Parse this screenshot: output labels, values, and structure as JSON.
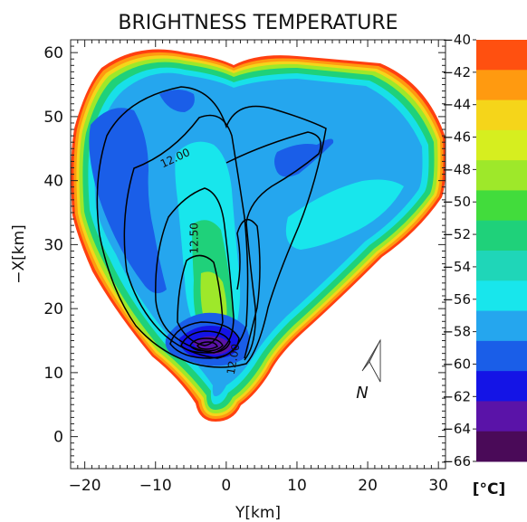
{
  "chart_data": {
    "type": "heatmap",
    "title": "BRIGHTNESS TEMPERATURE",
    "xlabel": "Y[km]",
    "ylabel": "−X[km]",
    "xlim": [
      -22,
      31
    ],
    "ylim": [
      -5,
      62
    ],
    "x_ticks": [
      -20,
      -10,
      0,
      10,
      20,
      30
    ],
    "x_tick_labels": [
      "−20",
      "−10",
      "0",
      "10",
      "20",
      "30"
    ],
    "y_ticks": [
      0,
      10,
      20,
      30,
      40,
      50,
      60
    ],
    "y_tick_labels": [
      "0",
      "10",
      "20",
      "30",
      "40",
      "50",
      "60"
    ],
    "colorbar": {
      "unit": "[°C]",
      "levels": [
        -40,
        -42,
        -44,
        -46,
        -48,
        -50,
        -52,
        -54,
        -56,
        -58,
        -60,
        -62,
        -64,
        -66
      ],
      "level_labels": [
        "−40",
        "−42",
        "−44",
        "−46",
        "−48",
        "−50",
        "−52",
        "−54",
        "−56",
        "−58",
        "−60",
        "−62",
        "−64",
        "−66"
      ],
      "colors": [
        "#ff5010",
        "#ff9a10",
        "#f5d51a",
        "#d6ee1f",
        "#9ee82a",
        "#42dc3c",
        "#1fd17a",
        "#1fd6b8",
        "#18e6ec",
        "#25a6ee",
        "#1a5ee8",
        "#1414e6",
        "#5a13a8",
        "#4a0a58"
      ]
    },
    "contour_labels": [
      {
        "text": "12.00",
        "x": -7,
        "y": 43
      },
      {
        "text": "12.50",
        "x": -4,
        "y": 31
      },
      {
        "text": "12.00",
        "x": 1.5,
        "y": 12
      }
    ],
    "north_arrow": {
      "label": "N"
    }
  }
}
